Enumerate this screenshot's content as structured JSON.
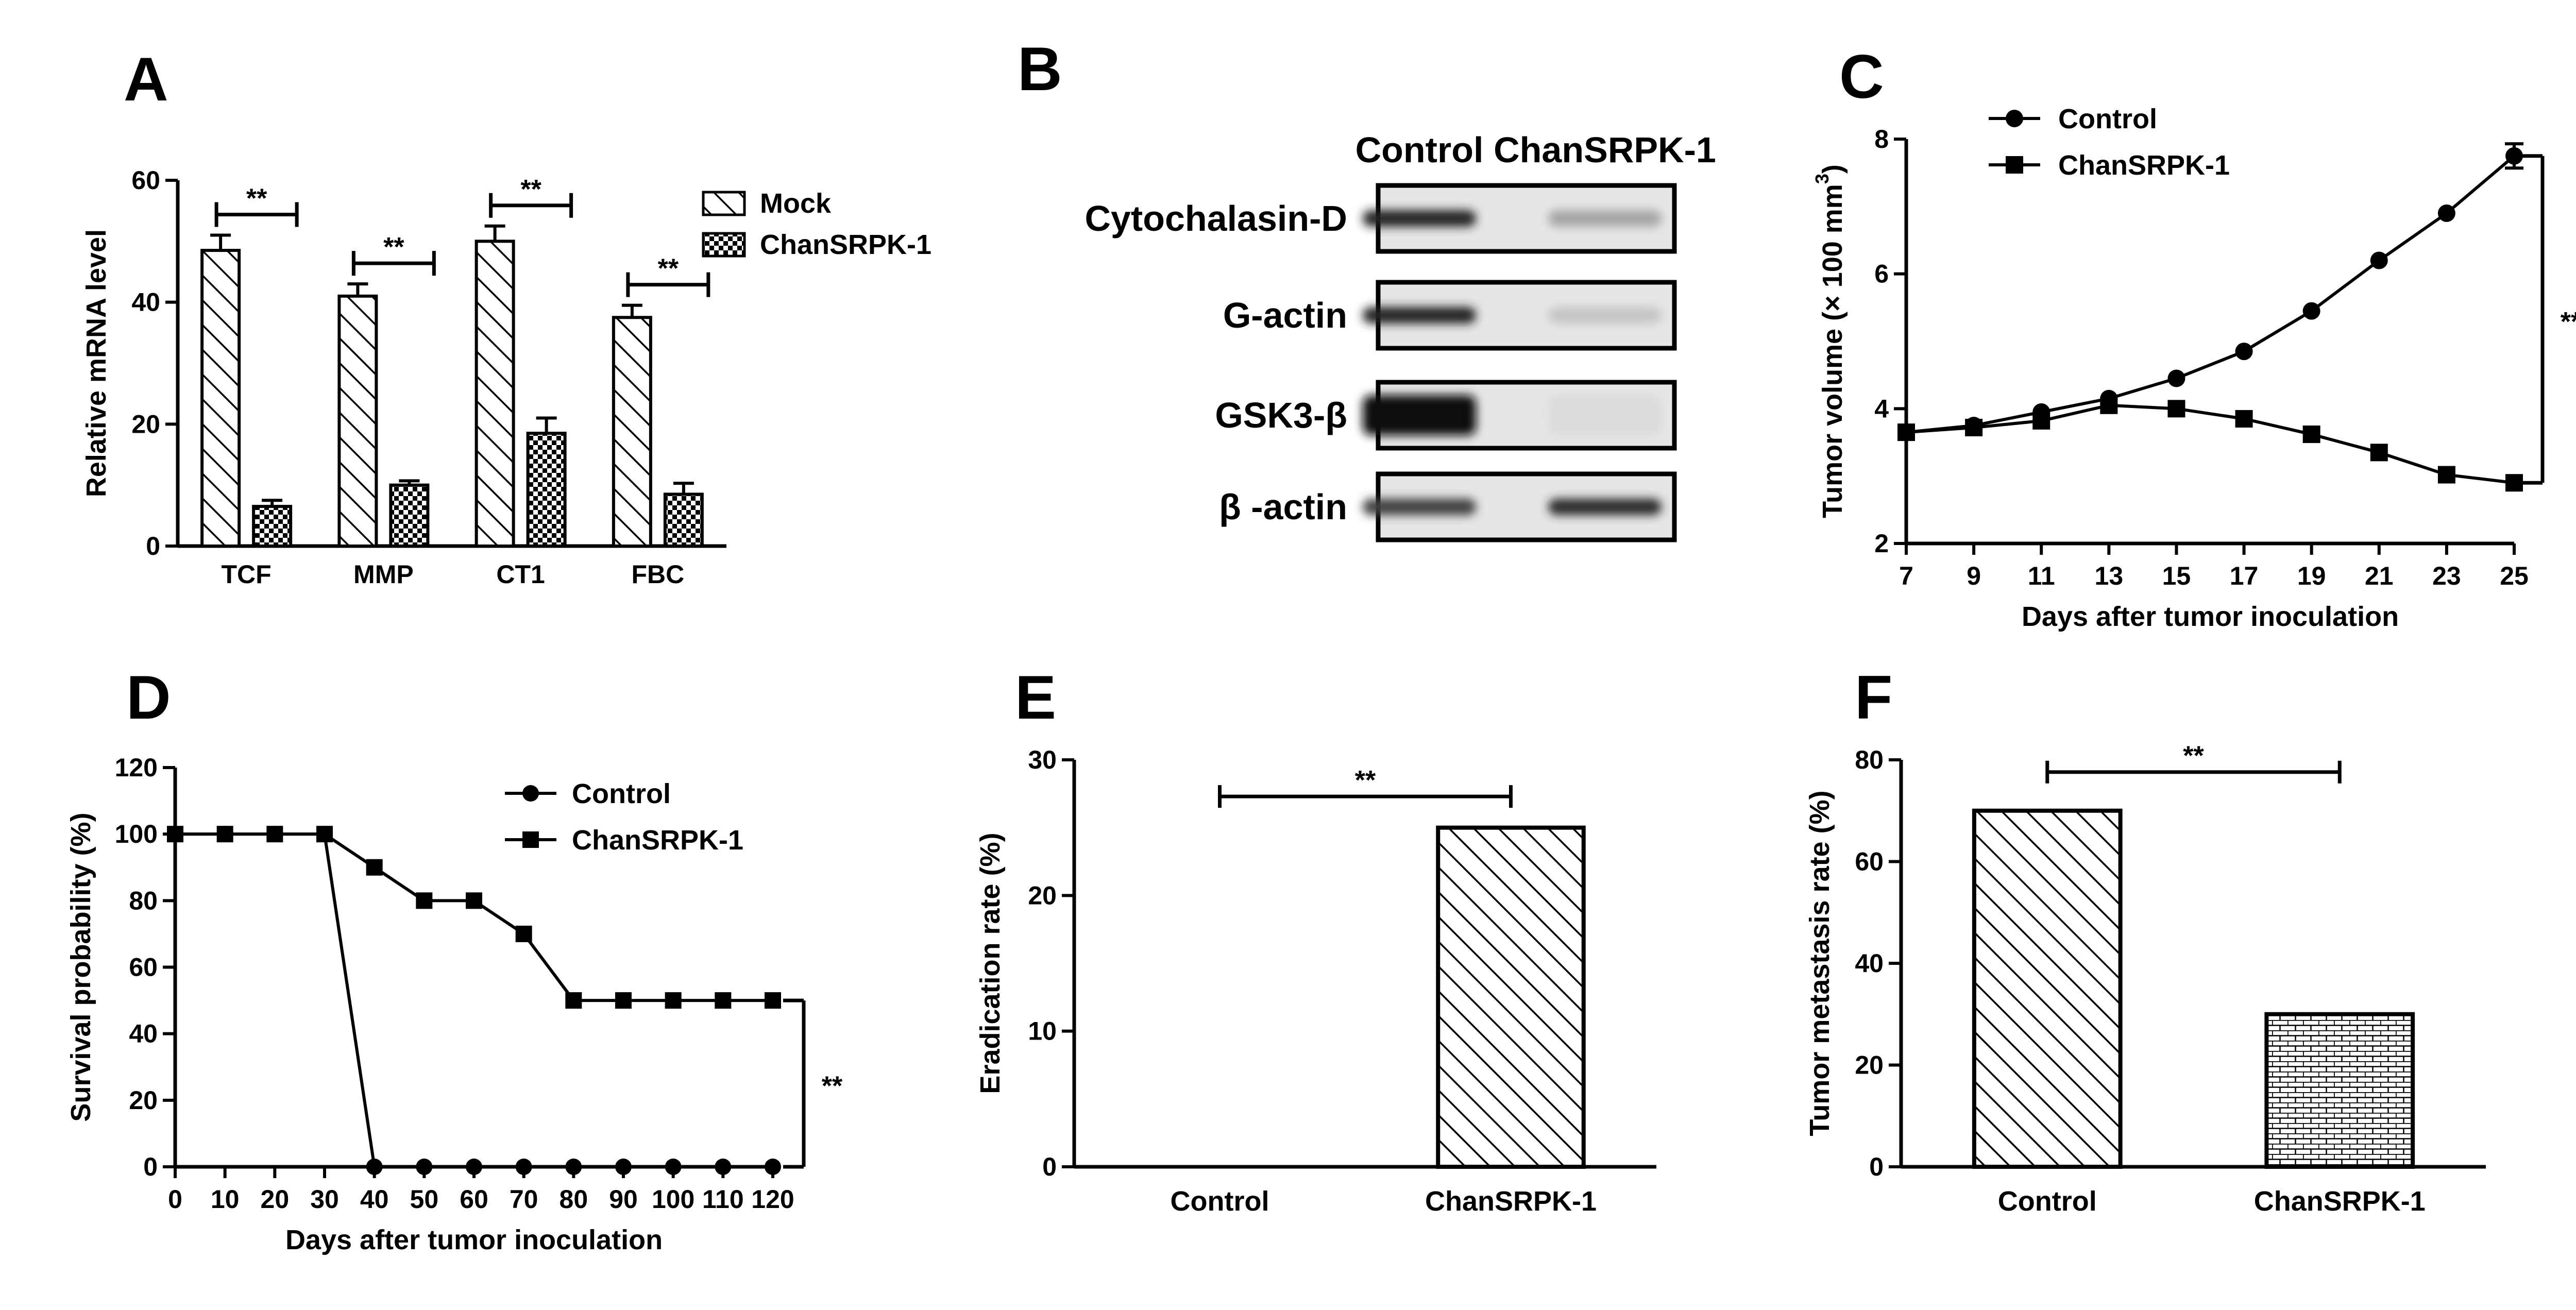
{
  "panels": {
    "A": "A",
    "B": "B",
    "C": "C",
    "D": "D",
    "E": "E",
    "F": "F"
  },
  "colors": {
    "ink": "#000000",
    "background": "#ffffff",
    "blot_bg": "#e6e6e6"
  },
  "chart_data": [
    {
      "id": "A",
      "type": "bar",
      "categories": [
        "TCF",
        "MMP",
        "CT1",
        "FBC"
      ],
      "series": [
        {
          "name": "Mock",
          "values": [
            48.5,
            41,
            50,
            37.5
          ],
          "errors": [
            2.5,
            2,
            2.5,
            2
          ],
          "pattern": "diagonal-hatch"
        },
        {
          "name": "ChanSRPK-1",
          "values": [
            6.5,
            10,
            18.5,
            8.5
          ],
          "errors": [
            1,
            0.7,
            2.5,
            1.8
          ],
          "pattern": "checker"
        }
      ],
      "ylabel": "Relative mRNA level",
      "ylim": [
        0,
        60
      ],
      "yticks": [
        0,
        20,
        40,
        60
      ],
      "significance": [
        "**",
        "**",
        "**",
        "**"
      ],
      "legend": "top-right"
    },
    {
      "id": "B",
      "type": "table",
      "columns": [
        "Control",
        "ChanSRPK-1"
      ],
      "rows": [
        "Cytochalasin-D",
        "G-actin",
        "GSK3-β",
        "β -actin"
      ],
      "band_intensity": [
        [
          0.9,
          0.3
        ],
        [
          0.9,
          0.15
        ],
        [
          1.0,
          0.05
        ],
        [
          0.75,
          0.85
        ]
      ]
    },
    {
      "id": "C",
      "type": "line",
      "x": [
        7,
        9,
        11,
        13,
        15,
        17,
        19,
        21,
        23,
        25
      ],
      "series": [
        {
          "name": "Control",
          "marker": "circle",
          "values": [
            3.65,
            3.75,
            3.95,
            4.15,
            4.45,
            4.85,
            5.45,
            6.2,
            6.9,
            7.75
          ],
          "errors": [
            0,
            0,
            0,
            0,
            0,
            0,
            0,
            0,
            0,
            0.18
          ]
        },
        {
          "name": "ChanSRPK-1",
          "marker": "square",
          "values": [
            3.65,
            3.72,
            3.82,
            4.05,
            4.0,
            3.85,
            3.62,
            3.35,
            3.02,
            2.9
          ],
          "errors": [
            0,
            0,
            0,
            0,
            0,
            0,
            0,
            0,
            0,
            0
          ]
        }
      ],
      "xlabel": "Days after tumor inoculation",
      "ylabel": "Tumor volume  (× 100 mm",
      "ylabel_sup": "3",
      "ylabel_close": ")",
      "xlim": [
        7,
        25
      ],
      "ylim": [
        2,
        8
      ],
      "yticks": [
        2,
        4,
        6,
        8
      ],
      "significance": "**",
      "legend": "top-left"
    },
    {
      "id": "D",
      "type": "line",
      "x": [
        0,
        10,
        20,
        30,
        40,
        50,
        60,
        70,
        80,
        90,
        100,
        110,
        120
      ],
      "series": [
        {
          "name": "Control",
          "marker": "circle",
          "values": [
            100,
            100,
            100,
            100,
            0,
            0,
            0,
            0,
            0,
            0,
            0,
            0,
            0
          ]
        },
        {
          "name": "ChanSRPK-1",
          "marker": "square",
          "values": [
            100,
            100,
            100,
            100,
            90,
            80,
            80,
            70,
            50,
            50,
            50,
            50,
            50
          ]
        }
      ],
      "xlabel": "Days after tumor inoculation",
      "ylabel": "Survival probability (%)",
      "xlim": [
        0,
        120
      ],
      "ylim": [
        0,
        120
      ],
      "yticks": [
        0,
        20,
        40,
        60,
        80,
        100,
        120
      ],
      "significance": "**",
      "legend": "top-right"
    },
    {
      "id": "E",
      "type": "bar",
      "categories": [
        "Control",
        "ChanSRPK-1"
      ],
      "values": [
        0,
        25
      ],
      "pattern": "diagonal-hatch",
      "ylabel": "Eradication rate (%)",
      "ylim": [
        0,
        30
      ],
      "yticks": [
        0,
        10,
        20,
        30
      ],
      "significance": "**"
    },
    {
      "id": "F",
      "type": "bar",
      "categories": [
        "Control",
        "ChanSRPK-1"
      ],
      "values": [
        70,
        30
      ],
      "patterns": [
        "diagonal-hatch",
        "brick"
      ],
      "ylabel": "Tumor metastasis rate (%)",
      "ylim": [
        0,
        80
      ],
      "yticks": [
        0,
        20,
        40,
        60,
        80
      ],
      "significance": "**"
    }
  ]
}
